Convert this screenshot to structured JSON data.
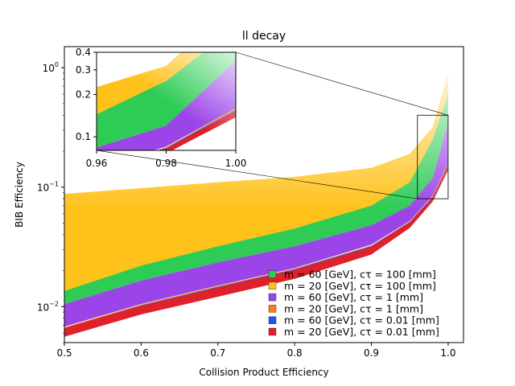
{
  "chart_data": {
    "type": "area",
    "title": "ll decay",
    "xlabel": "Collision Product Efficiency",
    "ylabel": "BIB Efficiency",
    "xlim": [
      0.5,
      1.02
    ],
    "ylim": [
      0.005,
      1.5
    ],
    "yscale": "log",
    "x_ticks": [
      "0.5",
      "0.6",
      "0.7",
      "0.8",
      "0.9",
      "1.0"
    ],
    "y_ticks": [
      {
        "value": 0.01,
        "base": "10",
        "exp": "−2"
      },
      {
        "value": 0.1,
        "base": "10",
        "exp": "−1"
      },
      {
        "value": 1,
        "base": "10",
        "exp": "0"
      }
    ],
    "legend_position": "lower-right",
    "series": [
      {
        "name": "m = 60 [GeV], cτ = 100 [mm]",
        "color": "#2ecc55",
        "x": [
          0.5,
          0.6,
          0.7,
          0.8,
          0.9,
          0.95,
          0.98,
          1.0
        ],
        "lower": [
          0.0105,
          0.0165,
          0.0235,
          0.032,
          0.048,
          0.07,
          0.12,
          0.35
        ],
        "upper": [
          0.0135,
          0.022,
          0.032,
          0.045,
          0.07,
          0.11,
          0.25,
          0.6
        ]
      },
      {
        "name": "m = 20 [GeV], cτ = 100 [mm]",
        "color": "#ffc21a",
        "x": [
          0.5,
          0.6,
          0.7,
          0.8,
          0.9,
          0.95,
          0.98,
          1.0
        ],
        "lower": [
          0.0115,
          0.0195,
          0.03,
          0.04,
          0.058,
          0.085,
          0.2,
          0.6
        ],
        "upper": [
          0.088,
          0.098,
          0.11,
          0.122,
          0.145,
          0.19,
          0.32,
          0.9
        ]
      },
      {
        "name": "m = 60 [GeV], cτ = 1 [mm]",
        "color": "#9b45e8",
        "x": [
          0.5,
          0.6,
          0.7,
          0.8,
          0.9,
          0.95,
          0.98,
          1.0
        ],
        "lower": [
          0.0068,
          0.0105,
          0.015,
          0.021,
          0.033,
          0.052,
          0.085,
          0.16
        ],
        "upper": [
          0.0105,
          0.0165,
          0.0235,
          0.032,
          0.048,
          0.07,
          0.12,
          0.35
        ]
      },
      {
        "name": "m = 20 [GeV], cτ = 1 [mm]",
        "color": "#ff7f0e",
        "x": [
          0.5,
          0.6,
          0.7,
          0.8,
          0.9,
          0.95,
          0.98,
          1.0
        ],
        "lower": [
          0.0062,
          0.0098,
          0.0142,
          0.02,
          0.031,
          0.05,
          0.08,
          0.15
        ],
        "upper": [
          0.0067,
          0.0104,
          0.0149,
          0.0208,
          0.0325,
          0.0515,
          0.084,
          0.16
        ]
      },
      {
        "name": "m = 60 [GeV], cτ = 0.01 [mm]",
        "color": "#2055f0",
        "x": [
          0.5,
          0.6,
          0.7,
          0.8,
          0.9,
          0.95,
          0.98,
          1.0
        ],
        "lower": [
          0.0058,
          0.0088,
          0.0122,
          0.0172,
          0.0275,
          0.046,
          0.077,
          0.14
        ],
        "upper": [
          0.0066,
          0.0102,
          0.0146,
          0.0205,
          0.032,
          0.051,
          0.083,
          0.155
        ]
      },
      {
        "name": "m = 20 [GeV], cτ = 0.01 [mm]",
        "color": "#e0202a",
        "x": [
          0.5,
          0.6,
          0.7,
          0.8,
          0.9,
          0.95,
          0.98,
          1.0
        ],
        "lower": [
          0.0056,
          0.0086,
          0.0121,
          0.0171,
          0.0273,
          0.0455,
          0.076,
          0.138
        ],
        "upper": [
          0.0066,
          0.0101,
          0.0144,
          0.0202,
          0.0315,
          0.0505,
          0.082,
          0.152
        ]
      }
    ],
    "inset": {
      "xlim": [
        0.96,
        1.0
      ],
      "ylim": [
        0.08,
        0.4
      ],
      "x_ticks": [
        "0.96",
        "0.98",
        "1.00"
      ],
      "y_ticks": [
        "0.1",
        "0.2",
        "0.3",
        "0.4"
      ]
    }
  }
}
